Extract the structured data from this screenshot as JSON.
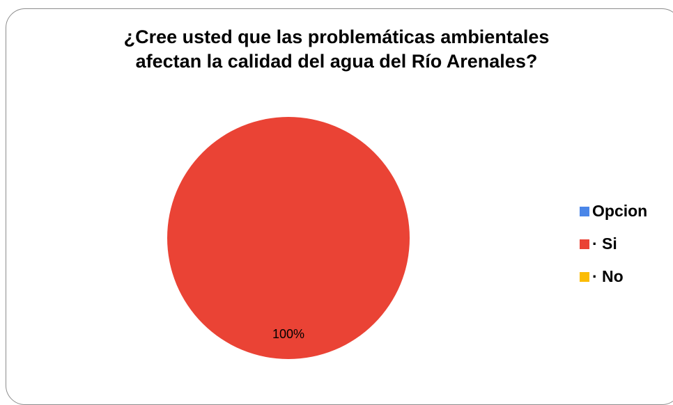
{
  "chart_data": {
    "type": "pie",
    "title": "¿Cree usted que las problemáticas ambientales afectan la calidad del agua del Río Arenales?",
    "title_lines": [
      "¿Cree usted que las problemáticas ambientales",
      "afectan la calidad del agua del Río Arenales?"
    ],
    "categories": [
      "Opcion",
      "· Si",
      "· No"
    ],
    "values": [
      0,
      100,
      0
    ],
    "colors": [
      "#4a86e8",
      "#ea4335",
      "#fbbc04"
    ],
    "data_labels": [
      "",
      "100%",
      ""
    ],
    "legend_position": "right"
  }
}
